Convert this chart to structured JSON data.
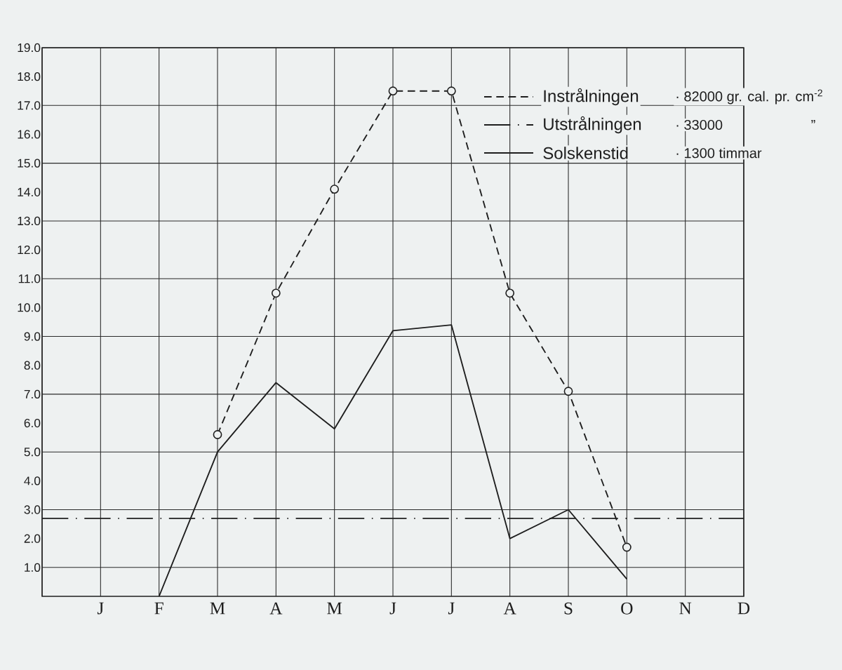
{
  "chart_data": {
    "type": "line",
    "categories": [
      null,
      "J",
      "F",
      "M",
      "A",
      "M",
      "J",
      "J",
      "A",
      "S",
      "O",
      "N",
      "D"
    ],
    "ylim": [
      0,
      19
    ],
    "yticks": [
      {
        "value": 1,
        "label": "1.0"
      },
      {
        "value": 2,
        "label": "2.0"
      },
      {
        "value": 3,
        "label": "3.0"
      },
      {
        "value": 4,
        "label": "4.0"
      },
      {
        "value": 5,
        "label": "5.0"
      },
      {
        "value": 6,
        "label": "6.0"
      },
      {
        "value": 7,
        "label": "7.0"
      },
      {
        "value": 8,
        "label": "8.0"
      },
      {
        "value": 9,
        "label": "9.0"
      },
      {
        "value": 10,
        "label": "10.0"
      },
      {
        "value": 11,
        "label": "11.0"
      },
      {
        "value": 12,
        "label": "12.0"
      },
      {
        "value": 13,
        "label": "13.0"
      },
      {
        "value": 14,
        "label": "14.0"
      },
      {
        "value": 15,
        "label": "15.0"
      },
      {
        "value": 16,
        "label": "16.0"
      },
      {
        "value": 17,
        "label": "17.0"
      },
      {
        "value": 18,
        "label": "18.0"
      },
      {
        "value": 19,
        "label": "19.0"
      }
    ],
    "grid": true,
    "legend": "top right",
    "series": [
      {
        "name": "Instrålningen",
        "color": "#1e1e1e",
        "line_style": "dashed",
        "marker": "circle",
        "values": [
          null,
          null,
          null,
          5.6,
          10.5,
          14.1,
          17.5,
          17.5,
          10.5,
          7.1,
          1.7,
          null,
          null
        ]
      },
      {
        "name": "Utstrålningen",
        "color": "#1e1e1e",
        "line_style": "dashdot",
        "values": [
          2.7,
          2.7,
          2.7,
          2.7,
          2.7,
          2.7,
          2.7,
          2.7,
          2.7,
          2.7,
          2.7,
          2.7,
          2.7
        ]
      },
      {
        "name": "Solskenstid",
        "color": "#1e1e1e",
        "line_style": "solid",
        "values": [
          null,
          null,
          0,
          5.0,
          7.4,
          5.8,
          9.2,
          9.4,
          2.0,
          3.0,
          0.6,
          null,
          null
        ]
      }
    ],
    "annotations": [
      "· 82000 gr. cal. pr. cm$^{-2}$",
      "· 33000",
      "· 1300 timmar",
      "”"
    ]
  }
}
